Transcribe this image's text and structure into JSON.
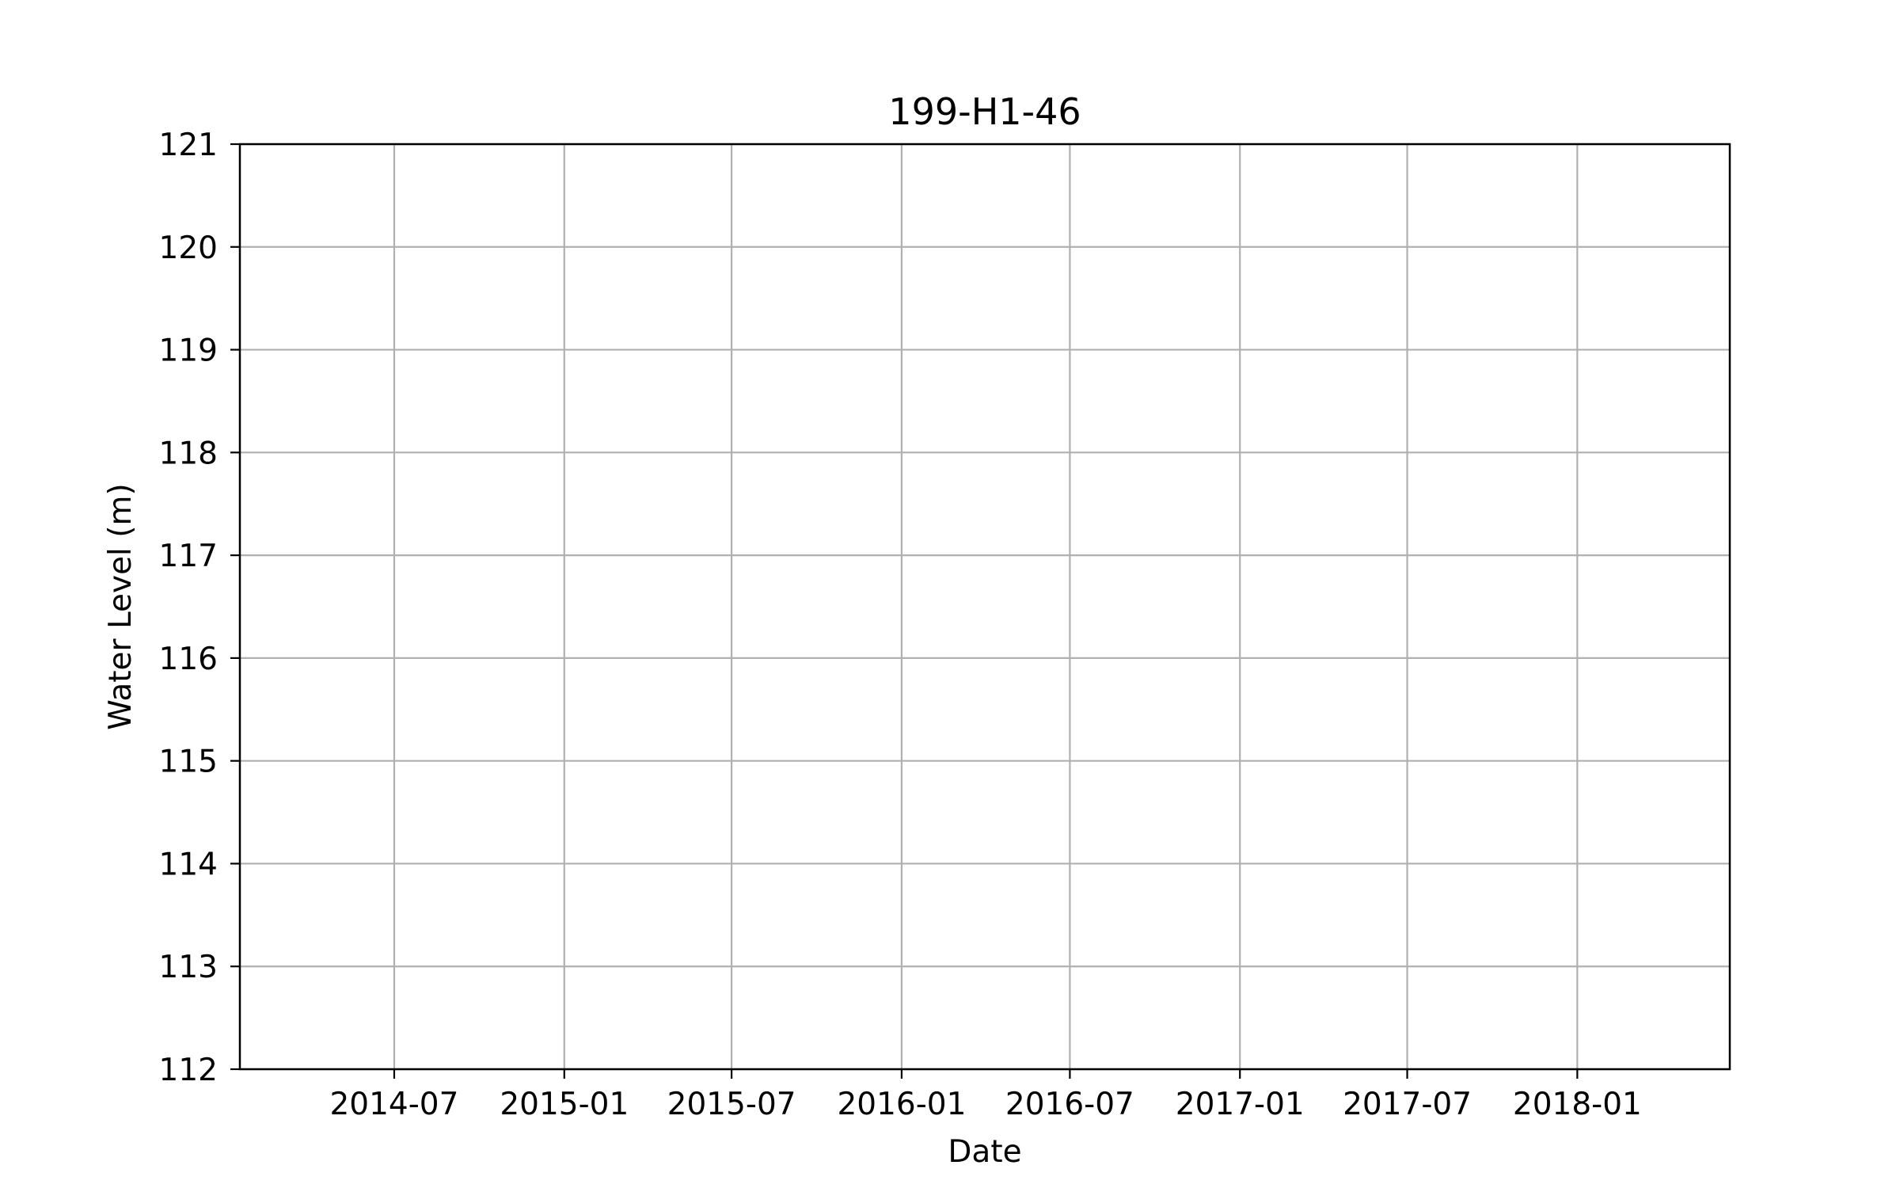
{
  "chart_data": {
    "type": "line",
    "title": "199-H1-46",
    "xlabel": "Date",
    "ylabel": "Water Level (m)",
    "x_axis": {
      "scale": "date",
      "range": [
        "2014-01-15",
        "2018-06-15"
      ],
      "ticks": [
        "2014-07-01",
        "2015-01-01",
        "2015-07-01",
        "2016-01-01",
        "2016-07-01",
        "2017-01-01",
        "2017-07-01",
        "2018-01-01"
      ],
      "tick_labels": [
        "2014-07",
        "2015-01",
        "2015-07",
        "2016-01",
        "2016-07",
        "2017-01",
        "2017-07",
        "2018-01"
      ]
    },
    "y_axis": {
      "range": [
        112,
        121
      ],
      "ticks": [
        112,
        113,
        114,
        115,
        116,
        117,
        118,
        119,
        120,
        121
      ],
      "tick_labels": [
        "112",
        "113",
        "114",
        "115",
        "116",
        "117",
        "118",
        "119",
        "120",
        "121"
      ]
    },
    "grid": true,
    "series": []
  }
}
